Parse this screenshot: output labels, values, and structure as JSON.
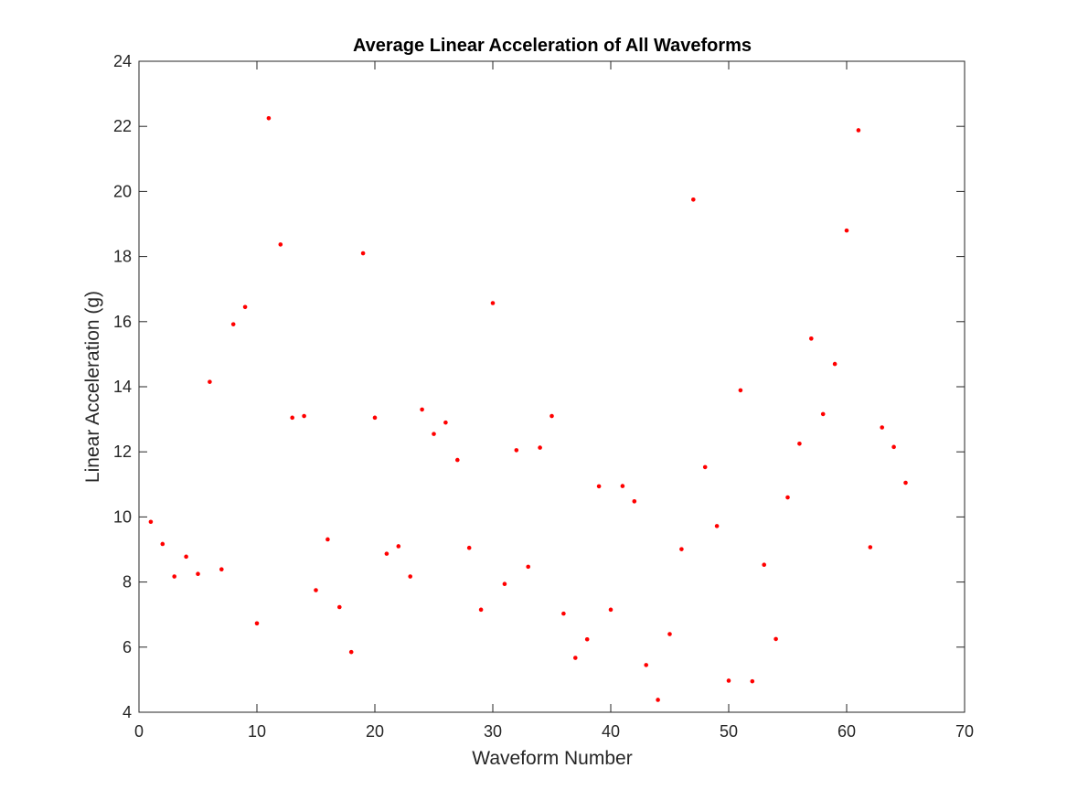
{
  "chart_data": {
    "type": "scatter",
    "title": "Average Linear Acceleration of All Waveforms",
    "xlabel": "Waveform Number",
    "ylabel": "Linear Acceleration (g)",
    "xlim": [
      0,
      70
    ],
    "ylim": [
      4,
      24
    ],
    "xticks": [
      "0",
      "10",
      "20",
      "30",
      "40",
      "50",
      "60",
      "70"
    ],
    "yticks": [
      "4",
      "6",
      "8",
      "10",
      "12",
      "14",
      "16",
      "18",
      "20",
      "22",
      "24"
    ],
    "grid": false,
    "marker_color": "#ff0000",
    "x": [
      1,
      2,
      3,
      4,
      5,
      6,
      7,
      8,
      9,
      10,
      11,
      12,
      13,
      14,
      15,
      16,
      17,
      18,
      19,
      20,
      21,
      22,
      23,
      24,
      25,
      26,
      27,
      28,
      29,
      30,
      31,
      32,
      33,
      34,
      35,
      36,
      37,
      38,
      39,
      40,
      41,
      42,
      43,
      44,
      45,
      46,
      47,
      48,
      49,
      50,
      51,
      52,
      53,
      54,
      55,
      56,
      57,
      58,
      59,
      60,
      61,
      62,
      63,
      64,
      65
    ],
    "y": [
      9.85,
      9.17,
      8.17,
      8.78,
      8.25,
      14.15,
      8.39,
      15.92,
      16.45,
      6.73,
      22.25,
      18.37,
      13.05,
      13.1,
      7.75,
      9.31,
      7.23,
      5.85,
      18.1,
      13.05,
      8.87,
      9.1,
      8.17,
      13.3,
      12.55,
      12.9,
      11.75,
      9.05,
      7.15,
      16.57,
      7.94,
      12.05,
      8.47,
      12.13,
      13.1,
      7.03,
      5.67,
      6.24,
      10.94,
      7.15,
      10.95,
      10.48,
      5.45,
      4.38,
      6.4,
      9.01,
      19.75,
      11.53,
      9.72,
      4.97,
      13.89,
      4.95,
      8.53,
      6.25,
      10.6,
      12.25,
      15.48,
      13.16,
      14.7,
      18.8,
      21.88,
      9.07,
      12.75,
      12.15,
      11.05
    ]
  }
}
